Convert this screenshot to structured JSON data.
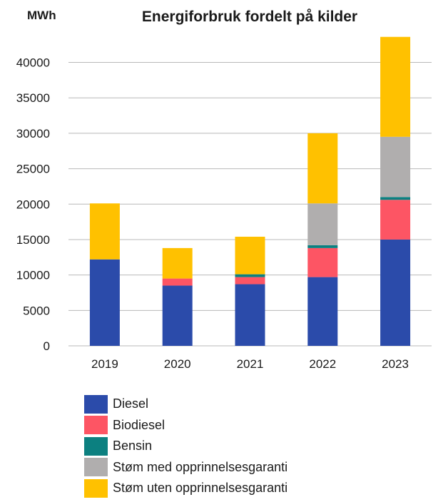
{
  "chart_data": {
    "type": "bar",
    "stacked": true,
    "title": "Energiforbruk fordelt på kilder",
    "ylabel": "MWh",
    "xlabel": "",
    "categories": [
      "2019",
      "2020",
      "2021",
      "2022",
      "2023"
    ],
    "ylim": [
      0,
      45000
    ],
    "yticks": [
      "0",
      "5000",
      "10000",
      "15000",
      "20000",
      "25000",
      "30000",
      "35000",
      "40000"
    ],
    "grid": true,
    "legend_position": "bottom",
    "series": [
      {
        "name": "Diesel",
        "color": "#2b4baa",
        "values": [
          12200,
          8500,
          8700,
          9700,
          15000
        ]
      },
      {
        "name": "Biodiesel",
        "color": "#fd5564",
        "values": [
          0,
          1000,
          1000,
          4100,
          5600
        ]
      },
      {
        "name": "Bensin",
        "color": "#0c8080",
        "values": [
          0,
          0,
          400,
          400,
          400
        ]
      },
      {
        "name": "Støm med opprinnelsesgaranti",
        "color": "#b0aeae",
        "values": [
          0,
          0,
          0,
          5900,
          8500
        ]
      },
      {
        "name": "Støm uten opprinnelsesgaranti",
        "color": "#ffc100",
        "values": [
          7900,
          4300,
          5300,
          9900,
          14100
        ]
      }
    ]
  }
}
